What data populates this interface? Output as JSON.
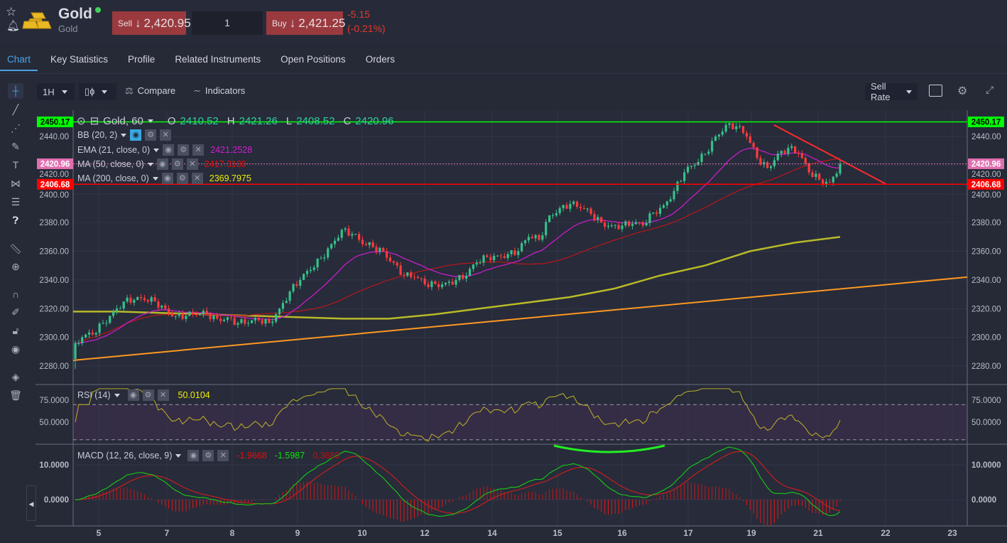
{
  "instrument": {
    "name": "Gold",
    "subtitle": "Gold",
    "status_color": "#3fd35b"
  },
  "trade": {
    "sell_label": "Sell",
    "sell_price": "2,420.95",
    "quantity": "1",
    "buy_label": "Buy",
    "buy_price": "2,421.25",
    "change": "-5.15",
    "change_pct": "(-0.21%)",
    "arrow": "↓"
  },
  "tabs": [
    {
      "label": "Chart"
    },
    {
      "label": "Key Statistics"
    },
    {
      "label": "Profile"
    },
    {
      "label": "Related Instruments"
    },
    {
      "label": "Open Positions"
    },
    {
      "label": "Orders"
    }
  ],
  "toolbar": {
    "timeframe": "1H",
    "compare": "Compare",
    "indicators": "Indicators",
    "rate": "Sell Rate"
  },
  "legend": {
    "title": "Gold, 60",
    "o_label": "O",
    "o": "2410.52",
    "h_label": "H",
    "h": "2421.26",
    "l_label": "L",
    "l": "2408.52",
    "c_label": "C",
    "c": "2420.96",
    "bb": "BB (20, 2)",
    "ema": "EMA (21, close, 0)",
    "ema_val": "2421.2528",
    "ma50": "MA (50, close, 0)",
    "ma50_val": "2417.3100",
    "ma200": "MA (200, close, 0)",
    "ma200_val": "2369.7975",
    "rsi": "RSI (14)",
    "rsi_val": "50.0104",
    "macd": "MACD (12, 26, close, 9)",
    "macd_val1": "-1.9668",
    "macd_val2": "-1.5987",
    "macd_val3": "0.3680"
  },
  "colors": {
    "up": "#35c28a",
    "down": "#ff3b3b",
    "ema": "#c81ec8",
    "ma50": "#b0181c",
    "ma200": "#b9b928",
    "trend": "#ff9820",
    "resist": "#ff2a2a",
    "hi": "#00ff00",
    "lo": "#ff0000",
    "last": "#e06fb0"
  },
  "chart_data": {
    "type": "candlestick",
    "title": "Gold, 60",
    "price_ticks": [
      "2440.00",
      "2420.00",
      "2400.00",
      "2380.00",
      "2360.00",
      "2340.00",
      "2320.00",
      "2300.00",
      "2280.00"
    ],
    "price_tick_values": [
      2440,
      2420,
      2400,
      2380,
      2360,
      2340,
      2320,
      2300,
      2280
    ],
    "markers": [
      {
        "label": "2450.17",
        "value": 2450.17,
        "kind": "hi"
      },
      {
        "label": "2420.96",
        "value": 2420.96,
        "kind": "last"
      },
      {
        "label": "2406.68",
        "value": 2406.68,
        "kind": "lo"
      }
    ],
    "x_ticks": [
      "5",
      "7",
      "8",
      "9",
      "10",
      "12",
      "14",
      "15",
      "16",
      "17",
      "19",
      "21",
      "22",
      "23"
    ],
    "closes": [
      2290,
      2300,
      2302,
      2310,
      2318,
      2325,
      2326,
      2326,
      2325,
      2320,
      2315,
      2315,
      2316,
      2316,
      2313,
      2314,
      2310,
      2310,
      2312,
      2310,
      2320,
      2332,
      2340,
      2347,
      2355,
      2365,
      2375,
      2372,
      2365,
      2363,
      2360,
      2352,
      2343,
      2342,
      2337,
      2337,
      2338,
      2340,
      2343,
      2352,
      2356,
      2357,
      2358,
      2360,
      2370,
      2368,
      2385,
      2390,
      2393,
      2390,
      2386,
      2380,
      2378,
      2378,
      2379,
      2378,
      2387,
      2392,
      2402,
      2415,
      2420,
      2428,
      2440,
      2448,
      2447,
      2440,
      2425,
      2418,
      2428,
      2432,
      2428,
      2415,
      2410,
      2408,
      2420.96
    ],
    "ma200": [
      2318,
      2318,
      2317,
      2316,
      2315,
      2314,
      2313,
      2313,
      2316,
      2320,
      2324,
      2328,
      2334,
      2343,
      2350,
      2360,
      2366,
      2370
    ],
    "trendline_support": [
      2284,
      2342
    ],
    "trendline_resistance": [
      2448,
      2407
    ],
    "rsi_ticks": [
      "75.0000",
      "50.0000"
    ],
    "rsi_levels": [
      70,
      30
    ],
    "macd_ticks": [
      "10.0000",
      "0.0000"
    ]
  }
}
